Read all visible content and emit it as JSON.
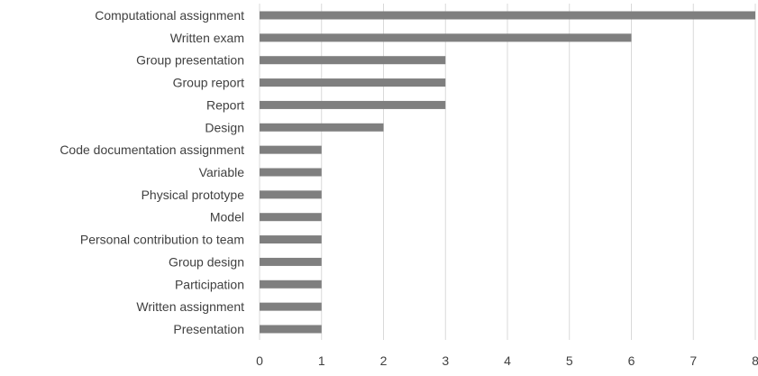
{
  "chart_data": {
    "type": "bar",
    "orientation": "horizontal",
    "categories": [
      "Computational assignment",
      "Written exam",
      "Group presentation",
      "Group report",
      "Report",
      "Design",
      "Code documentation assignment",
      "Variable",
      "Physical prototype",
      "Model",
      "Personal contribution to team",
      "Group design",
      "Participation",
      "Written assignment",
      "Presentation"
    ],
    "values": [
      8,
      6,
      3,
      3,
      3,
      2,
      1,
      1,
      1,
      1,
      1,
      1,
      1,
      1,
      1
    ],
    "xlim": [
      0,
      8
    ],
    "xticks": [
      0,
      1,
      2,
      3,
      4,
      5,
      6,
      7,
      8
    ],
    "grid": "vertical",
    "title": "",
    "xlabel": "",
    "ylabel": "",
    "bar_color": "#7f7f7f",
    "grid_color": "#d9d9d9",
    "text_color": "#404040"
  }
}
